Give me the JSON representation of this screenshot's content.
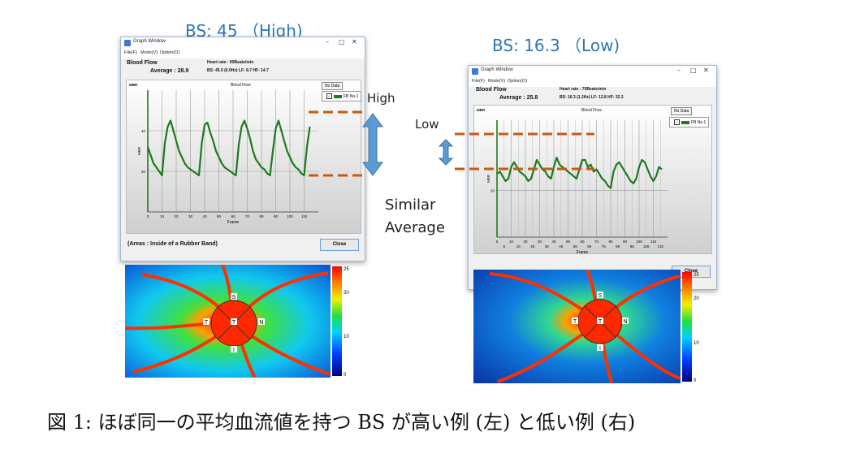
{
  "labels": {
    "left_bs": "BS: 45 （High)",
    "right_bs": "BS: 16.3 （Low)",
    "high": "High",
    "low": "Low",
    "similar": "Similar",
    "average": "Average",
    "caption": "図 1: ほぼ同一の平均血流値を持つ BS が高い例 (左) と低い例 (右)"
  },
  "windows": [
    {
      "title": "Graph Window",
      "menu": [
        "File(F)",
        "Mode(V)",
        "Option(O)"
      ],
      "blood_flow": "Blood Flow",
      "average": "Average : 28.9",
      "heart_rate": "Heart rate : 90Beats/min",
      "stats": "BS: 45.0 (0.0Hz)   LF: 8.7   HF: 14.7",
      "chart_title": "Blood Flow",
      "mbr": "MBR",
      "no_data": "No Data",
      "legend": "FB No.1",
      "xlabel": "Frame",
      "ylabel": "MBR",
      "areas": "(Areas : Inside of a Rubber Band)",
      "close": "Close"
    },
    {
      "title": "Graph Window",
      "menu": [
        "File(F)",
        "Mode(V)",
        "Option(O)"
      ],
      "blood_flow": "Blood Flow",
      "average": "Average : 25.8",
      "heart_rate": "Heart rate : 75Beats/min",
      "stats": "BS: 16.3 (1.2Hz)   LF: 12.8   HF: 32.2",
      "chart_title": "Blood Flow",
      "mbr": "MBR",
      "no_data": "No Data",
      "legend": "FB No.1",
      "xlabel": "Frame",
      "ylabel": "MBR",
      "areas": "",
      "close": "Close"
    }
  ],
  "chart_data": [
    {
      "type": "line",
      "title": "Blood Flow",
      "xlabel": "Frame",
      "ylabel": "MBR",
      "xlim": [
        0,
        120
      ],
      "ylim": [
        0,
        60
      ],
      "xticks": [
        0,
        10,
        20,
        30,
        40,
        50,
        60,
        70,
        80,
        90,
        100,
        110
      ],
      "yticks": [
        20,
        40
      ],
      "series": [
        {
          "name": "FB No.1",
          "color": "#1e7a1e",
          "x": [
            0,
            2,
            4,
            6,
            8,
            10,
            12,
            14,
            16,
            18,
            20,
            22,
            24,
            26,
            28,
            30,
            32,
            34,
            36,
            38,
            40,
            42,
            44,
            46,
            48,
            50,
            52,
            54,
            56,
            58,
            60,
            62,
            64,
            66,
            68,
            70,
            72,
            74,
            76,
            78,
            80,
            82,
            84,
            86,
            88,
            90,
            92,
            94,
            96,
            98,
            100,
            102,
            104,
            106,
            108,
            110,
            112,
            114
          ],
          "values": [
            32,
            28,
            24,
            22,
            20,
            18,
            34,
            42,
            45,
            40,
            35,
            30,
            27,
            24,
            22,
            21,
            20,
            19,
            18,
            34,
            43,
            44,
            39,
            35,
            30,
            27,
            24,
            22,
            21,
            20,
            19,
            18,
            33,
            42,
            45,
            41,
            36,
            30,
            26,
            24,
            22,
            21,
            19,
            18,
            30,
            41,
            45,
            40,
            35,
            30,
            27,
            24,
            22,
            21,
            19,
            18,
            32,
            42
          ]
        }
      ]
    },
    {
      "type": "line",
      "title": "Blood Flow",
      "xlabel": "Frame",
      "ylabel": "MBR",
      "xlim": [
        0,
        120
      ],
      "ylim": [
        0,
        50
      ],
      "xticks": [
        0,
        10,
        20,
        30,
        40,
        50,
        60,
        70,
        80,
        90,
        100,
        110
      ],
      "xticks_minor": [
        5,
        15,
        25,
        35,
        45,
        55,
        65,
        75,
        85,
        95,
        105,
        115
      ],
      "yticks": [
        20
      ],
      "series": [
        {
          "name": "FB No.1",
          "color": "#1e7a1e",
          "x": [
            0,
            2,
            4,
            6,
            8,
            10,
            12,
            14,
            16,
            18,
            20,
            22,
            24,
            26,
            28,
            30,
            32,
            34,
            36,
            38,
            40,
            42,
            44,
            46,
            48,
            50,
            52,
            54,
            56,
            58,
            60,
            62,
            64,
            66,
            68,
            70,
            72,
            74,
            76,
            78,
            80,
            82,
            84,
            86,
            88,
            90,
            92,
            94,
            96,
            98,
            100,
            102,
            104,
            106,
            108,
            110,
            112,
            114,
            116
          ],
          "values": [
            27,
            28,
            26,
            24,
            25,
            30,
            32,
            30,
            28,
            27,
            26,
            24,
            25,
            29,
            33,
            31,
            29,
            28,
            26,
            25,
            30,
            34,
            31,
            30,
            29,
            28,
            27,
            26,
            25,
            29,
            33,
            33,
            30,
            31,
            28,
            29,
            27,
            25,
            24,
            22,
            21,
            28,
            31,
            32,
            30,
            28,
            26,
            24,
            23,
            25,
            30,
            33,
            32,
            29,
            26,
            24,
            26,
            30,
            29
          ]
        }
      ]
    }
  ],
  "heatmap": {
    "colorbar_ticks_left": [
      "25",
      "20",
      "10",
      "0"
    ],
    "colorbar_ticks_right": [
      "25",
      "20",
      "10",
      "0"
    ],
    "sector_labels": [
      "S",
      "T",
      "N",
      "I",
      "T"
    ]
  }
}
